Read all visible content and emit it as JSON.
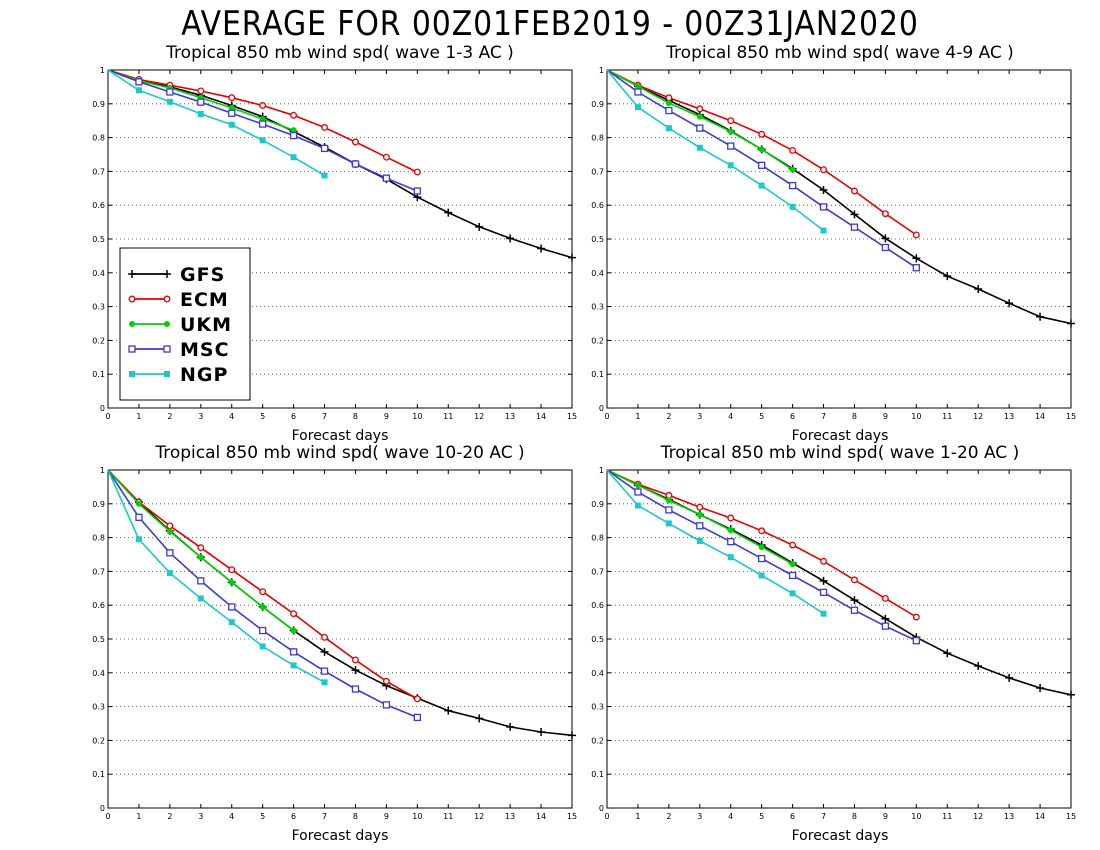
{
  "title": "AVERAGE FOR 00Z01FEB2019 - 00Z31JAN2020",
  "colors": {
    "GFS": "#000000",
    "ECM": "#e60000",
    "UKM": "#00d200",
    "MSC": "#3c3cd2",
    "NGP": "#1ec8c8"
  },
  "markers": {
    "GFS": "plus",
    "ECM": "open-circle",
    "UKM": "filled-circle",
    "MSC": "open-square",
    "NGP": "filled-square"
  },
  "legend": [
    "GFS",
    "ECM",
    "UKM",
    "MSC",
    "NGP"
  ],
  "chart_data": [
    {
      "type": "line",
      "title": "Tropical 850 mb wind spd( wave 1-3 AC )",
      "xlabel": "Forecast days",
      "xlim": [
        0,
        15
      ],
      "ylim": [
        0,
        1
      ],
      "xticks": [
        "0",
        "1",
        "2",
        "3",
        "4",
        "5",
        "6",
        "7",
        "8",
        "9",
        "10",
        "11",
        "12",
        "13",
        "14",
        "15"
      ],
      "yticks": [
        "0",
        "0.1",
        "0.2",
        "0.3",
        "0.4",
        "0.5",
        "0.6",
        "0.7",
        "0.8",
        "0.9",
        "1"
      ],
      "grid": "dotted",
      "legend_position": "lower-left",
      "series": [
        {
          "name": "GFS",
          "x": [
            0,
            1,
            2,
            3,
            4,
            5,
            6,
            7,
            8,
            9,
            10,
            11,
            12,
            13,
            14,
            15
          ],
          "values": [
            1,
            0.97,
            0.95,
            0.925,
            0.895,
            0.862,
            0.818,
            0.772,
            0.722,
            0.677,
            0.624,
            0.578,
            0.536,
            0.502,
            0.472,
            0.445
          ]
        },
        {
          "name": "ECM",
          "x": [
            0,
            1,
            2,
            3,
            4,
            5,
            6,
            7,
            8,
            9,
            10
          ],
          "values": [
            1,
            0.972,
            0.955,
            0.938,
            0.918,
            0.895,
            0.866,
            0.83,
            0.787,
            0.742,
            0.698
          ]
        },
        {
          "name": "UKM",
          "x": [
            0,
            1,
            2,
            3,
            4,
            5,
            6
          ],
          "values": [
            1,
            0.968,
            0.947,
            0.918,
            0.888,
            0.855,
            0.822
          ]
        },
        {
          "name": "MSC",
          "x": [
            0,
            1,
            2,
            3,
            4,
            5,
            6,
            7,
            8,
            9,
            10
          ],
          "values": [
            1,
            0.965,
            0.935,
            0.905,
            0.872,
            0.84,
            0.806,
            0.768,
            0.722,
            0.68,
            0.642
          ]
        },
        {
          "name": "NGP",
          "x": [
            0,
            1,
            2,
            3,
            4,
            5,
            6,
            7
          ],
          "values": [
            1,
            0.94,
            0.906,
            0.87,
            0.838,
            0.792,
            0.742,
            0.688
          ]
        }
      ]
    },
    {
      "type": "line",
      "title": "Tropical 850 mb wind spd( wave 4-9 AC )",
      "xlabel": "Forecast days",
      "xlim": [
        0,
        15
      ],
      "ylim": [
        0,
        1
      ],
      "xticks": [
        "0",
        "1",
        "2",
        "3",
        "4",
        "5",
        "6",
        "7",
        "8",
        "9",
        "10",
        "11",
        "12",
        "13",
        "14",
        "15"
      ],
      "yticks": [
        "0",
        "0.1",
        "0.2",
        "0.3",
        "0.4",
        "0.5",
        "0.6",
        "0.7",
        "0.8",
        "0.9",
        "1"
      ],
      "grid": "dotted",
      "series": [
        {
          "name": "GFS",
          "x": [
            0,
            1,
            2,
            3,
            4,
            5,
            6,
            7,
            8,
            9,
            10,
            11,
            12,
            13,
            14,
            15
          ],
          "values": [
            1,
            0.952,
            0.91,
            0.868,
            0.82,
            0.765,
            0.708,
            0.645,
            0.573,
            0.502,
            0.443,
            0.39,
            0.352,
            0.31,
            0.27,
            0.25
          ]
        },
        {
          "name": "ECM",
          "x": [
            0,
            1,
            2,
            3,
            4,
            5,
            6,
            7,
            8,
            9,
            10
          ],
          "values": [
            1,
            0.955,
            0.918,
            0.885,
            0.85,
            0.81,
            0.762,
            0.705,
            0.642,
            0.575,
            0.512
          ]
        },
        {
          "name": "UKM",
          "x": [
            0,
            1,
            2,
            3,
            4,
            5,
            6
          ],
          "values": [
            1,
            0.952,
            0.902,
            0.862,
            0.818,
            0.765,
            0.705
          ]
        },
        {
          "name": "MSC",
          "x": [
            0,
            1,
            2,
            3,
            4,
            5,
            6,
            7,
            8,
            9,
            10
          ],
          "values": [
            1,
            0.935,
            0.88,
            0.828,
            0.775,
            0.718,
            0.658,
            0.595,
            0.535,
            0.475,
            0.415
          ]
        },
        {
          "name": "NGP",
          "x": [
            0,
            1,
            2,
            3,
            4,
            5,
            6,
            7
          ],
          "values": [
            1,
            0.89,
            0.828,
            0.77,
            0.718,
            0.658,
            0.595,
            0.525
          ]
        }
      ]
    },
    {
      "type": "line",
      "title": "Tropical 850 mb wind spd( wave 10-20 AC )",
      "xlabel": "Forecast days",
      "xlim": [
        0,
        15
      ],
      "ylim": [
        0,
        1
      ],
      "xticks": [
        "0",
        "1",
        "2",
        "3",
        "4",
        "5",
        "6",
        "7",
        "8",
        "9",
        "10",
        "11",
        "12",
        "13",
        "14",
        "15"
      ],
      "yticks": [
        "0",
        "0.1",
        "0.2",
        "0.3",
        "0.4",
        "0.5",
        "0.6",
        "0.7",
        "0.8",
        "0.9",
        "1"
      ],
      "grid": "dotted",
      "series": [
        {
          "name": "GFS",
          "x": [
            0,
            1,
            2,
            3,
            4,
            5,
            6,
            7,
            8,
            9,
            10,
            11,
            12,
            13,
            14,
            15
          ],
          "values": [
            1,
            0.905,
            0.82,
            0.742,
            0.668,
            0.595,
            0.525,
            0.462,
            0.408,
            0.362,
            0.325,
            0.288,
            0.265,
            0.24,
            0.225,
            0.215
          ]
        },
        {
          "name": "ECM",
          "x": [
            0,
            1,
            2,
            3,
            4,
            5,
            6,
            7,
            8,
            9,
            10
          ],
          "values": [
            1,
            0.905,
            0.835,
            0.77,
            0.705,
            0.64,
            0.575,
            0.505,
            0.438,
            0.375,
            0.323
          ]
        },
        {
          "name": "UKM",
          "x": [
            0,
            1,
            2,
            3,
            4,
            5,
            6
          ],
          "values": [
            1,
            0.9,
            0.818,
            0.742,
            0.668,
            0.595,
            0.525
          ]
        },
        {
          "name": "MSC",
          "x": [
            0,
            1,
            2,
            3,
            4,
            5,
            6,
            7,
            8,
            9,
            10
          ],
          "values": [
            1,
            0.86,
            0.755,
            0.672,
            0.595,
            0.525,
            0.462,
            0.405,
            0.352,
            0.305,
            0.268
          ]
        },
        {
          "name": "NGP",
          "x": [
            0,
            1,
            2,
            3,
            4,
            5,
            6,
            7
          ],
          "values": [
            1,
            0.795,
            0.695,
            0.62,
            0.55,
            0.478,
            0.422,
            0.372
          ]
        }
      ]
    },
    {
      "type": "line",
      "title": "Tropical 850 mb wind spd( wave 1-20 AC )",
      "xlabel": "Forecast days",
      "xlim": [
        0,
        15
      ],
      "ylim": [
        0,
        1
      ],
      "xticks": [
        "0",
        "1",
        "2",
        "3",
        "4",
        "5",
        "6",
        "7",
        "8",
        "9",
        "10",
        "11",
        "12",
        "13",
        "14",
        "15"
      ],
      "yticks": [
        "0",
        "0.1",
        "0.2",
        "0.3",
        "0.4",
        "0.5",
        "0.6",
        "0.7",
        "0.8",
        "0.9",
        "1"
      ],
      "grid": "dotted",
      "series": [
        {
          "name": "GFS",
          "x": [
            0,
            1,
            2,
            3,
            4,
            5,
            6,
            7,
            8,
            9,
            10,
            11,
            12,
            13,
            14,
            15
          ],
          "values": [
            1,
            0.955,
            0.913,
            0.868,
            0.825,
            0.778,
            0.725,
            0.672,
            0.615,
            0.56,
            0.505,
            0.458,
            0.42,
            0.385,
            0.355,
            0.335
          ]
        },
        {
          "name": "ECM",
          "x": [
            0,
            1,
            2,
            3,
            4,
            5,
            6,
            7,
            8,
            9,
            10
          ],
          "values": [
            1,
            0.958,
            0.925,
            0.89,
            0.858,
            0.82,
            0.778,
            0.73,
            0.675,
            0.62,
            0.565
          ]
        },
        {
          "name": "UKM",
          "x": [
            0,
            1,
            2,
            3,
            4,
            5,
            6
          ],
          "values": [
            1,
            0.955,
            0.91,
            0.868,
            0.822,
            0.772,
            0.722
          ]
        },
        {
          "name": "MSC",
          "x": [
            0,
            1,
            2,
            3,
            4,
            5,
            6,
            7,
            8,
            9,
            10
          ],
          "values": [
            1,
            0.935,
            0.882,
            0.835,
            0.788,
            0.738,
            0.688,
            0.638,
            0.585,
            0.538,
            0.495
          ]
        },
        {
          "name": "NGP",
          "x": [
            0,
            1,
            2,
            3,
            4,
            5,
            6,
            7
          ],
          "values": [
            1,
            0.895,
            0.842,
            0.79,
            0.742,
            0.688,
            0.635,
            0.575
          ]
        }
      ]
    }
  ]
}
